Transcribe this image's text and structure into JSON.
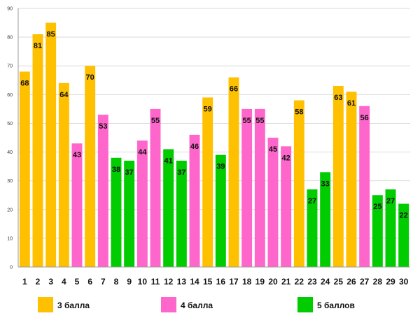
{
  "chart_data": {
    "type": "bar",
    "categories": [
      "1",
      "2",
      "3",
      "4",
      "5",
      "6",
      "7",
      "8",
      "9",
      "10",
      "11",
      "12",
      "13",
      "14",
      "15",
      "16",
      "17",
      "18",
      "19",
      "20",
      "21",
      "22",
      "23",
      "24",
      "25",
      "26",
      "27",
      "28",
      "29",
      "30"
    ],
    "values": [
      68,
      81,
      85,
      64,
      43,
      70,
      53,
      38,
      37,
      44,
      55,
      41,
      37,
      46,
      59,
      39,
      66,
      55,
      55,
      45,
      42,
      58,
      27,
      33,
      63,
      61,
      56,
      25,
      27,
      22
    ],
    "groups": [
      0,
      0,
      0,
      0,
      1,
      0,
      1,
      2,
      2,
      1,
      1,
      2,
      2,
      1,
      0,
      2,
      0,
      1,
      1,
      1,
      1,
      0,
      2,
      2,
      0,
      0,
      1,
      2,
      2,
      2
    ],
    "series": [
      {
        "name": "3 балла",
        "color": "#FFC000"
      },
      {
        "name": "4 балла",
        "color": "#FF66CC"
      },
      {
        "name": "5 баллов",
        "color": "#00CC00"
      }
    ],
    "ylim": [
      0,
      90
    ],
    "yticks": [
      0,
      10,
      20,
      30,
      40,
      50,
      60,
      70,
      80,
      90
    ],
    "grid": true,
    "legend": "bottom",
    "title": "",
    "xlabel": "",
    "ylabel": ""
  }
}
